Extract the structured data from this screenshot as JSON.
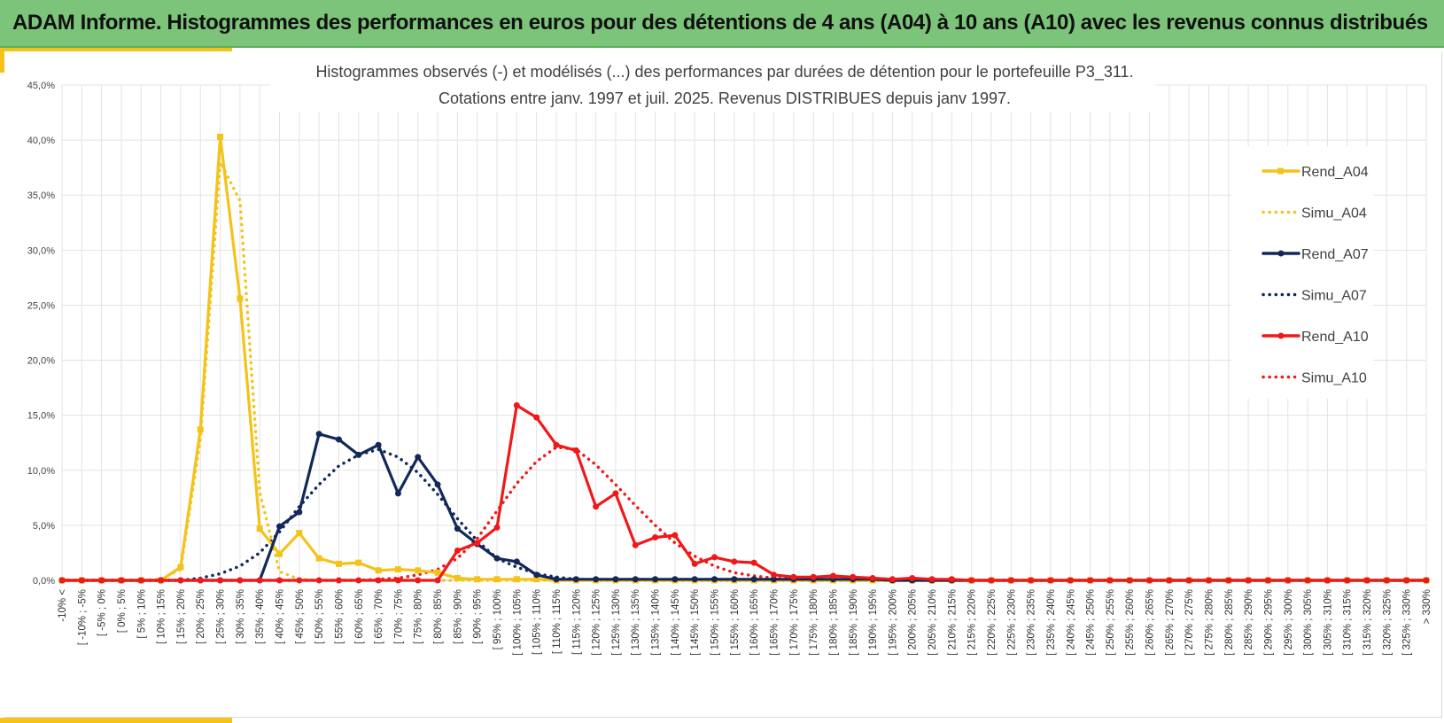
{
  "banner": {
    "title": "ADAM Informe. Histogrammes des performances en euros pour des détentions de 4 ans (A04) à 10 ans (A10) avec les revenus connus distribués"
  },
  "colors": {
    "banner_bg": "#7dc47b",
    "accent": "#f4c31a",
    "a04": "#f4c31a",
    "a07": "#12285a",
    "a10": "#f01818",
    "grid": "#e3e3e3"
  },
  "chart_data": {
    "type": "line",
    "title_lines": [
      "Histogrammes observés (-) et modélisés (...) des performances par durées de détention pour le portefeuille P3_311.",
      "Cotations entre janv. 1997 et juil. 2025. Revenus DISTRIBUES depuis janv 1997."
    ],
    "ylim": [
      0,
      45
    ],
    "y_ticks": [
      "0,0%",
      "5,0%",
      "10,0%",
      "15,0%",
      "20,0%",
      "25,0%",
      "30,0%",
      "35,0%",
      "40,0%",
      "45,0%"
    ],
    "grid": true,
    "legend_position": "right",
    "categories": [
      "-10% <",
      "[ -10% ; -5%",
      "[ -5% ; 0%",
      "[ 0% ; 5%",
      "[ 5% ; 10%",
      "[ 10% ; 15%",
      "[ 15% ; 20%",
      "[ 20% ; 25%",
      "[ 25% ; 30%",
      "[ 30% ; 35%",
      "[ 35% ; 40%",
      "[ 40% ; 45%",
      "[ 45% ; 50%",
      "[ 50% ; 55%",
      "[ 55% ; 60%",
      "[ 60% ; 65%",
      "[ 65% ; 70%",
      "[ 70% ; 75%",
      "[ 75% ; 80%",
      "[ 80% ; 85%",
      "[ 85% ; 90%",
      "[ 90% ; 95%",
      "[ 95% ; 100%",
      "[ 100% ; 105%",
      "[ 105% ; 110%",
      "[ 110% ; 115%",
      "[ 115% ; 120%",
      "[ 120% ; 125%",
      "[ 125% ; 130%",
      "[ 130% ; 135%",
      "[ 135% ; 140%",
      "[ 140% ; 145%",
      "[ 145% ; 150%",
      "[ 150% ; 155%",
      "[ 155% ; 160%",
      "[ 160% ; 165%",
      "[ 165% ; 170%",
      "[ 170% ; 175%",
      "[ 175% ; 180%",
      "[ 180% ; 185%",
      "[ 185% ; 190%",
      "[ 190% ; 195%",
      "[ 195% ; 200%",
      "[ 200% ; 205%",
      "[ 205% ; 210%",
      "[ 210% ; 215%",
      "[ 215% ; 220%",
      "[ 220% ; 225%",
      "[ 225% ; 230%",
      "[ 230% ; 235%",
      "[ 235% ; 240%",
      "[ 240% ; 245%",
      "[ 245% ; 250%",
      "[ 250% ; 255%",
      "[ 255% ; 260%",
      "[ 260% ; 265%",
      "[ 265% ; 270%",
      "[ 270% ; 275%",
      "[ 275% ; 280%",
      "[ 280% ; 285%",
      "[ 285% ; 290%",
      "[ 290% ; 295%",
      "[ 295% ; 300%",
      "[ 300% ; 305%",
      "[ 305% ; 310%",
      "[ 310% ; 315%",
      "[ 315% ; 320%",
      "[ 320% ; 325%",
      "[ 325% ; 330%",
      "> 330%"
    ],
    "series": [
      {
        "name": "Rend_A04",
        "style": "solid",
        "marker": "square",
        "color": "#f4c31a",
        "values": [
          0,
          0,
          0,
          0,
          0,
          0,
          1.2,
          13.7,
          40.3,
          25.6,
          4.7,
          2.4,
          4.3,
          2.0,
          1.5,
          1.6,
          0.9,
          1.0,
          0.9,
          0.7,
          0.2,
          0.1,
          0.1,
          0.1,
          0.1,
          0,
          0,
          0,
          0,
          0,
          0,
          0,
          0,
          0,
          0,
          0,
          0,
          0,
          0,
          0,
          0,
          0,
          0,
          0,
          0,
          0,
          0,
          0,
          0,
          0,
          0,
          0,
          0,
          0,
          0,
          0,
          0,
          0,
          0,
          0,
          0,
          0,
          0,
          0,
          0,
          0,
          0,
          0,
          0,
          0
        ]
      },
      {
        "name": "Simu_A04",
        "style": "dotted",
        "color": "#f4c31a",
        "values": [
          0,
          0,
          0,
          0,
          0,
          0.1,
          1.0,
          12.8,
          38.0,
          34.5,
          8.0,
          0.8,
          0.1,
          0,
          0,
          0,
          0,
          0,
          0,
          0,
          0,
          0,
          0,
          0,
          0,
          0,
          0,
          0,
          0,
          0,
          0,
          0,
          0,
          0,
          0,
          0,
          0,
          0,
          0,
          0,
          0,
          0,
          0,
          0,
          0,
          0,
          0,
          0,
          0,
          0,
          0,
          0,
          0,
          0,
          0,
          0,
          0,
          0,
          0,
          0,
          0,
          0,
          0,
          0,
          0,
          0,
          0,
          0,
          0,
          0
        ]
      },
      {
        "name": "Rend_A07",
        "style": "solid",
        "marker": "circle",
        "color": "#12285a",
        "values": [
          0,
          0,
          0,
          0,
          0,
          0,
          0,
          0,
          0,
          0,
          0,
          4.9,
          6.2,
          13.3,
          12.8,
          11.4,
          12.3,
          7.9,
          11.2,
          8.7,
          4.7,
          3.3,
          2.0,
          1.7,
          0.5,
          0.1,
          0.1,
          0.1,
          0.1,
          0.1,
          0.1,
          0.1,
          0.1,
          0.1,
          0.1,
          0.1,
          0.1,
          0.1,
          0.1,
          0.1,
          0.1,
          0.1,
          0,
          0,
          0,
          0,
          0,
          0,
          0,
          0,
          0,
          0,
          0,
          0,
          0,
          0,
          0,
          0,
          0,
          0,
          0,
          0,
          0,
          0,
          0,
          0,
          0,
          0,
          0,
          0
        ]
      },
      {
        "name": "Simu_A07",
        "style": "dotted",
        "color": "#12285a",
        "values": [
          0,
          0,
          0,
          0,
          0,
          0,
          0,
          0.2,
          0.6,
          1.3,
          2.5,
          4.4,
          6.7,
          8.7,
          10.4,
          11.4,
          11.9,
          11.2,
          9.8,
          7.8,
          5.6,
          3.6,
          2.0,
          1.2,
          0.6,
          0.3,
          0.1,
          0,
          0,
          0,
          0,
          0,
          0,
          0,
          0,
          0,
          0,
          0,
          0,
          0,
          0,
          0,
          0,
          0,
          0,
          0,
          0,
          0,
          0,
          0,
          0,
          0,
          0,
          0,
          0,
          0,
          0,
          0,
          0,
          0,
          0,
          0,
          0,
          0,
          0,
          0,
          0,
          0,
          0,
          0
        ]
      },
      {
        "name": "Rend_A10",
        "style": "solid",
        "marker": "circle",
        "color": "#f01818",
        "values": [
          0,
          0,
          0,
          0,
          0,
          0,
          0,
          0,
          0,
          0,
          0,
          0,
          0,
          0,
          0,
          0,
          0,
          0,
          0,
          0,
          2.7,
          3.4,
          4.8,
          15.9,
          14.8,
          12.3,
          11.8,
          6.7,
          7.9,
          3.2,
          3.9,
          4.1,
          1.5,
          2.1,
          1.7,
          1.6,
          0.5,
          0.3,
          0.3,
          0.4,
          0.3,
          0.2,
          0.1,
          0.2,
          0.1,
          0.1,
          0,
          0,
          0,
          0,
          0,
          0,
          0,
          0,
          0,
          0,
          0,
          0,
          0,
          0,
          0,
          0,
          0,
          0,
          0,
          0,
          0,
          0,
          0,
          0
        ]
      },
      {
        "name": "Simu_A10",
        "style": "dotted",
        "color": "#f01818",
        "values": [
          0,
          0,
          0,
          0,
          0,
          0,
          0,
          0,
          0,
          0,
          0,
          0,
          0,
          0,
          0,
          0,
          0.1,
          0.2,
          0.5,
          1.0,
          2.0,
          3.8,
          6.3,
          8.8,
          10.8,
          12.1,
          11.9,
          10.5,
          8.7,
          6.8,
          5.0,
          3.4,
          2.2,
          1.3,
          0.7,
          0.4,
          0.2,
          0.1,
          0,
          0,
          0,
          0,
          0,
          0,
          0,
          0,
          0,
          0,
          0,
          0,
          0,
          0,
          0,
          0,
          0,
          0,
          0,
          0,
          0,
          0,
          0,
          0,
          0,
          0,
          0,
          0,
          0,
          0,
          0,
          0
        ]
      }
    ]
  }
}
